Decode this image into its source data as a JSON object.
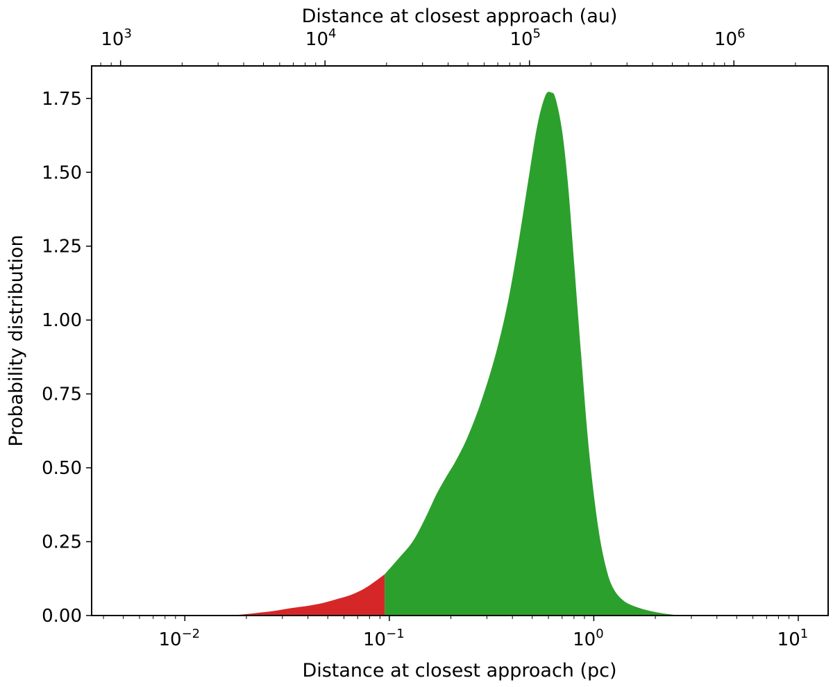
{
  "chart_data": {
    "type": "area",
    "title": "",
    "xlabel": "Distance at closest approach (pc)",
    "x2label": "Distance at closest approach (au)",
    "ylabel": "Probability distribution",
    "xscale": "log",
    "xlim": [
      0.0035,
      14
    ],
    "x2lim": [
      722,
      2890000
    ],
    "ylim": [
      0,
      1.86
    ],
    "grid": false,
    "legend": "none",
    "x_ticks": [
      {
        "value": 0.01,
        "base": "10",
        "exp": "−2"
      },
      {
        "value": 0.1,
        "base": "10",
        "exp": "−1"
      },
      {
        "value": 1,
        "base": "10",
        "exp": "0"
      },
      {
        "value": 10,
        "base": "10",
        "exp": "1"
      }
    ],
    "x2_ticks": [
      {
        "value": 1000,
        "base": "10",
        "exp": "3"
      },
      {
        "value": 10000,
        "base": "10",
        "exp": "4"
      },
      {
        "value": 100000,
        "base": "10",
        "exp": "5"
      },
      {
        "value": 1000000,
        "base": "10",
        "exp": "6"
      }
    ],
    "y_ticks": [
      "0.00",
      "0.25",
      "0.50",
      "0.75",
      "1.00",
      "1.25",
      "1.50",
      "1.75"
    ],
    "threshold_x": 0.095,
    "colors": {
      "below_threshold": "#d62728",
      "above_threshold": "#2ca02c"
    },
    "series": [
      {
        "x": [
          0.0035,
          0.01,
          0.015,
          0.018,
          0.022,
          0.027,
          0.033,
          0.04,
          0.047,
          0.055,
          0.065,
          0.075,
          0.085,
          0.095,
          0.11,
          0.13,
          0.15,
          0.17,
          0.19,
          0.21,
          0.24,
          0.28,
          0.33,
          0.38,
          0.43,
          0.48,
          0.53,
          0.58,
          0.62,
          0.65,
          0.7,
          0.75,
          0.8,
          0.87,
          0.95,
          1.05,
          1.15,
          1.25,
          1.4,
          1.6,
          1.9,
          2.3,
          2.8,
          3.5,
          5,
          10,
          14
        ],
        "y": [
          0,
          0,
          0,
          0.002,
          0.008,
          0.015,
          0.025,
          0.033,
          0.042,
          0.055,
          0.07,
          0.09,
          0.115,
          0.14,
          0.19,
          0.25,
          0.33,
          0.41,
          0.47,
          0.52,
          0.6,
          0.72,
          0.88,
          1.06,
          1.27,
          1.48,
          1.66,
          1.76,
          1.77,
          1.75,
          1.64,
          1.45,
          1.2,
          0.87,
          0.55,
          0.3,
          0.16,
          0.09,
          0.05,
          0.03,
          0.015,
          0.005,
          0,
          0,
          0,
          0,
          0
        ]
      }
    ]
  }
}
